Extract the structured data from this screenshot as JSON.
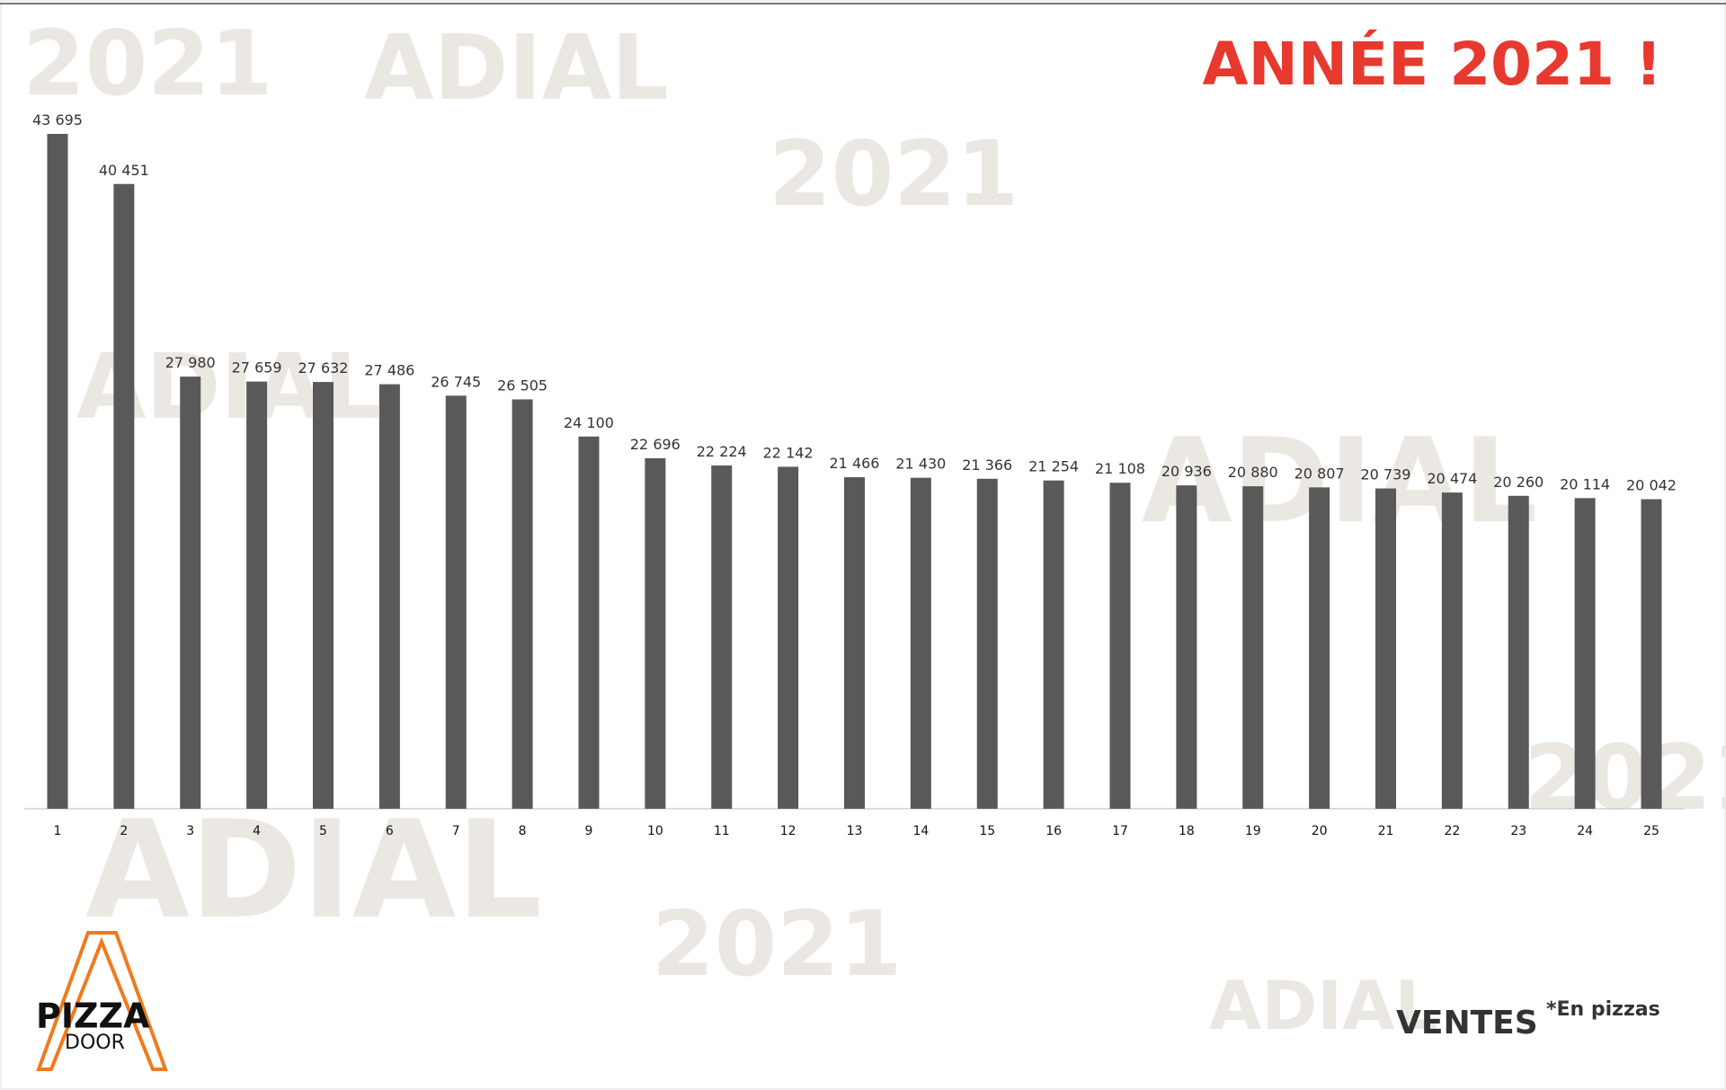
{
  "chart_data": {
    "type": "bar",
    "title": "ANNÉE 2021 !",
    "categories": [
      "1",
      "2",
      "3",
      "4",
      "5",
      "6",
      "7",
      "8",
      "9",
      "10",
      "11",
      "12",
      "13",
      "14",
      "15",
      "16",
      "17",
      "18",
      "19",
      "20",
      "21",
      "22",
      "23",
      "24",
      "25"
    ],
    "values": [
      43695,
      40451,
      27980,
      27659,
      27632,
      27486,
      26745,
      26505,
      24100,
      22696,
      22224,
      22142,
      21466,
      21430,
      21366,
      21254,
      21108,
      20936,
      20880,
      20807,
      20739,
      20474,
      20260,
      20114,
      20042
    ],
    "value_labels": [
      "43 695",
      "40 451",
      "27 980",
      "27 659",
      "27 632",
      "27 486",
      "26 745",
      "26 505",
      "24 100",
      "22 696",
      "22 224",
      "22 142",
      "21 466",
      "21 430",
      "21 366",
      "21 254",
      "21 108",
      "20 936",
      "20 880",
      "20 807",
      "20 739",
      "20 474",
      "20 260",
      "20 114",
      "20 042"
    ],
    "color": "#595959",
    "title_color": "#e8392f",
    "subtitle": "VENTES",
    "note": "*En pizzas",
    "logo": {
      "top": "PIZZA",
      "bottom": "DOOR"
    },
    "watermarks": [
      "2021",
      "ADIAL"
    ]
  }
}
